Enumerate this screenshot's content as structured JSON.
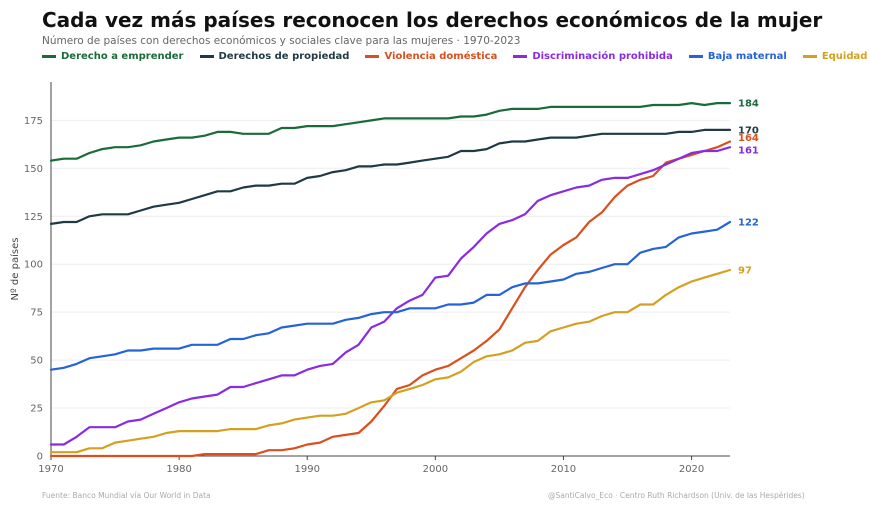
{
  "header": {
    "title": "Cada vez más países reconocen los derechos económicos de la mujer",
    "subtitle": "Número de países con derechos económicos y sociales clave para las mujeres · 1970-2023"
  },
  "footer": {
    "source": "Fuente: Banco Mundial vía Our World in Data",
    "credit": "@SantiCalvo_Eco · Centro Ruth Richardson (Univ. de las Hespérides)"
  },
  "chart_data": {
    "type": "line",
    "title": "Cada vez más países reconocen los derechos económicos de la mujer",
    "xlabel": "",
    "ylabel": "Nº de países",
    "xlim": [
      1970,
      2023
    ],
    "ylim": [
      0,
      195
    ],
    "xticks": [
      1970,
      1980,
      1990,
      2000,
      2010,
      2020
    ],
    "yticks": [
      0,
      25,
      50,
      75,
      100,
      125,
      150,
      175
    ],
    "grid": true,
    "legend_position": "top",
    "x": [
      1970,
      1971,
      1972,
      1973,
      1974,
      1975,
      1976,
      1977,
      1978,
      1979,
      1980,
      1981,
      1982,
      1983,
      1984,
      1985,
      1986,
      1987,
      1988,
      1989,
      1990,
      1991,
      1992,
      1993,
      1994,
      1995,
      1996,
      1997,
      1998,
      1999,
      2000,
      2001,
      2002,
      2003,
      2004,
      2005,
      2006,
      2007,
      2008,
      2009,
      2010,
      2011,
      2012,
      2013,
      2014,
      2015,
      2016,
      2017,
      2018,
      2019,
      2020,
      2021,
      2022,
      2023
    ],
    "series": [
      {
        "name": "Derecho a emprender",
        "color": "#1b6b3a",
        "end_label": "184",
        "values": [
          154,
          155,
          155,
          158,
          160,
          161,
          161,
          162,
          164,
          165,
          166,
          166,
          167,
          169,
          169,
          168,
          168,
          168,
          171,
          171,
          172,
          172,
          172,
          173,
          174,
          175,
          176,
          176,
          176,
          176,
          176,
          176,
          177,
          177,
          178,
          180,
          181,
          181,
          181,
          182,
          182,
          182,
          182,
          182,
          182,
          182,
          182,
          183,
          183,
          183,
          184,
          183,
          184,
          184
        ]
      },
      {
        "name": "Derechos de propiedad",
        "color": "#1f3a44",
        "end_label": "170",
        "values": [
          121,
          122,
          122,
          125,
          126,
          126,
          126,
          128,
          130,
          131,
          132,
          134,
          136,
          138,
          138,
          140,
          141,
          141,
          142,
          142,
          145,
          146,
          148,
          149,
          151,
          151,
          152,
          152,
          153,
          154,
          155,
          156,
          159,
          159,
          160,
          163,
          164,
          164,
          165,
          166,
          166,
          166,
          167,
          168,
          168,
          168,
          168,
          168,
          168,
          169,
          169,
          170,
          170,
          170
        ]
      },
      {
        "name": "Violencia doméstica",
        "color": "#d9501e",
        "end_label": "164",
        "values": [
          0,
          0,
          0,
          0,
          0,
          0,
          0,
          0,
          0,
          0,
          0,
          0,
          1,
          1,
          1,
          1,
          1,
          3,
          3,
          4,
          6,
          7,
          10,
          11,
          12,
          18,
          26,
          35,
          37,
          42,
          45,
          47,
          51,
          55,
          60,
          66,
          77,
          88,
          97,
          105,
          110,
          114,
          122,
          127,
          135,
          141,
          144,
          146,
          153,
          155,
          157,
          159,
          161,
          164
        ]
      },
      {
        "name": "Discriminación prohibida",
        "color": "#8a2be2",
        "end_label": "161",
        "values": [
          6,
          6,
          10,
          15,
          15,
          15,
          18,
          19,
          22,
          25,
          28,
          30,
          31,
          32,
          36,
          36,
          38,
          40,
          42,
          42,
          45,
          47,
          48,
          54,
          58,
          67,
          70,
          77,
          81,
          84,
          93,
          94,
          103,
          109,
          116,
          121,
          123,
          126,
          133,
          136,
          138,
          140,
          141,
          144,
          145,
          145,
          147,
          149,
          152,
          155,
          158,
          159,
          159,
          161
        ]
      },
      {
        "name": "Baja maternal",
        "color": "#2563d9",
        "end_label": "122",
        "values": [
          45,
          46,
          48,
          51,
          52,
          53,
          55,
          55,
          56,
          56,
          56,
          58,
          58,
          58,
          61,
          61,
          63,
          64,
          67,
          68,
          69,
          69,
          69,
          71,
          72,
          74,
          75,
          75,
          77,
          77,
          77,
          79,
          79,
          80,
          84,
          84,
          88,
          90,
          90,
          91,
          92,
          95,
          96,
          98,
          100,
          100,
          106,
          108,
          109,
          114,
          116,
          117,
          118,
          122
        ]
      },
      {
        "name": "Equidad salarial",
        "color": "#d4a020",
        "end_label": "97",
        "values": [
          2,
          2,
          2,
          4,
          4,
          7,
          8,
          9,
          10,
          12,
          13,
          13,
          13,
          13,
          14,
          14,
          14,
          16,
          17,
          19,
          20,
          21,
          21,
          22,
          25,
          28,
          29,
          33,
          35,
          37,
          40,
          41,
          44,
          49,
          52,
          53,
          55,
          59,
          60,
          65,
          67,
          69,
          70,
          73,
          75,
          75,
          79,
          79,
          84,
          88,
          91,
          93,
          95,
          97
        ]
      }
    ]
  }
}
